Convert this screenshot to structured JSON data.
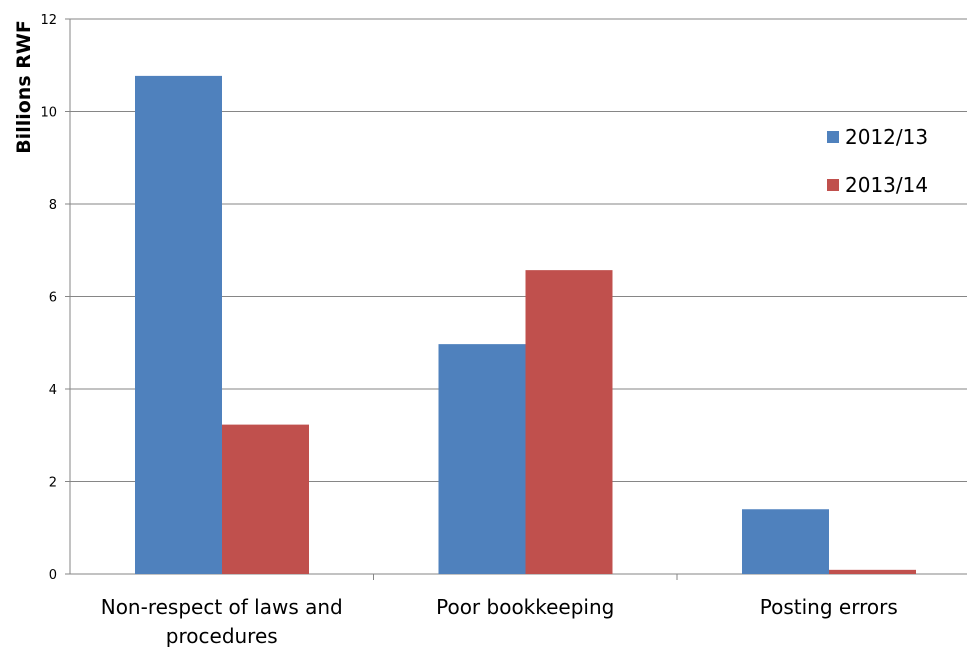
{
  "chart_data": {
    "type": "bar",
    "ylabel": "Billions RWF",
    "xlabel": "",
    "categories": [
      [
        "Non-respect of laws and",
        "procedures"
      ],
      [
        "Poor bookkeeping"
      ],
      [
        "Posting errors"
      ]
    ],
    "series": [
      {
        "name": "2012/13",
        "values": [
          10.77,
          4.97,
          1.4
        ],
        "color": "#4f81bd"
      },
      {
        "name": "2013/14",
        "values": [
          3.23,
          6.57,
          0.09
        ],
        "color": "#c0504d"
      }
    ],
    "ylim": [
      0,
      12
    ],
    "yticks": [
      "0",
      "2",
      "4",
      "6",
      "8",
      "10",
      "12"
    ],
    "grid": true,
    "legend": "top-right"
  }
}
